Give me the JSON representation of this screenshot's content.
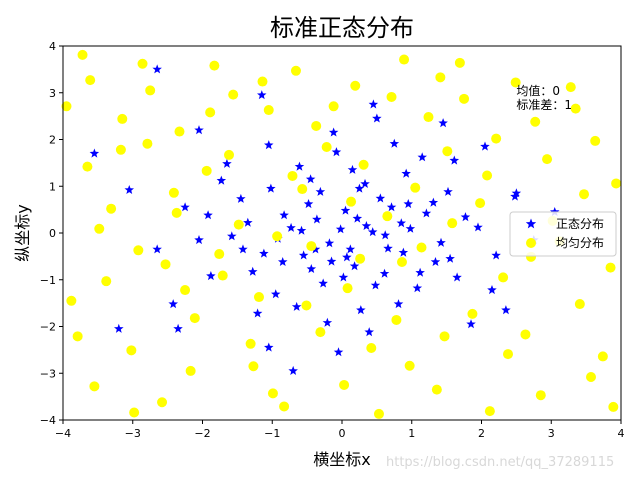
{
  "chart_data": {
    "type": "scatter",
    "title": "标准正态分布",
    "xlabel": "横坐标x",
    "ylabel": "纵坐标y",
    "xlim": [
      -4,
      4
    ],
    "ylim": [
      -4,
      4
    ],
    "x_ticks": [
      -4,
      -3,
      -2,
      -1,
      0,
      1,
      2,
      3,
      4
    ],
    "y_ticks": [
      -4,
      -3,
      -2,
      -1,
      0,
      1,
      2,
      3,
      4
    ],
    "grid": false,
    "legend_position": "center-right",
    "annotation_lines": [
      "均值：0",
      "标准差：1"
    ],
    "annotation_at": [
      2.5,
      2.7
    ],
    "series": [
      {
        "name": "正态分布",
        "marker": "star",
        "color": "#0000ff",
        "points": [
          [
            0.12,
            -0.35
          ],
          [
            -0.48,
            0.62
          ],
          [
            0.85,
            0.21
          ],
          [
            -1.12,
            -0.44
          ],
          [
            0.33,
            1.05
          ],
          [
            -0.27,
            -1.08
          ],
          [
            1.34,
            -0.62
          ],
          [
            -0.73,
            0.11
          ],
          [
            0.05,
            0.48
          ],
          [
            0.61,
            -0.87
          ],
          [
            -1.45,
            0.73
          ],
          [
            0.92,
            1.27
          ],
          [
            -0.18,
            -0.22
          ],
          [
            1.77,
            0.34
          ],
          [
            -0.95,
            -1.31
          ],
          [
            0.44,
            0.02
          ],
          [
            -0.61,
            1.42
          ],
          [
            1.08,
            -1.18
          ],
          [
            -2.05,
            -0.15
          ],
          [
            0.27,
            -1.65
          ],
          [
            -0.36,
            0.29
          ],
          [
            1.52,
            0.88
          ],
          [
            -1.28,
            -0.83
          ],
          [
            0.71,
            0.55
          ],
          [
            -0.08,
            1.73
          ],
          [
            2.21,
            -0.48
          ],
          [
            -1.73,
            1.12
          ],
          [
            0.18,
            -0.71
          ],
          [
            -0.55,
            -0.48
          ],
          [
            0.98,
            0.09
          ],
          [
            -2.42,
            -1.52
          ],
          [
            1.61,
            1.55
          ],
          [
            -0.83,
            0.38
          ],
          [
            0.39,
            -2.12
          ],
          [
            -1.05,
            1.88
          ],
          [
            2.48,
            0.78
          ],
          [
            -0.21,
            -1.92
          ],
          [
            1.21,
            0.42
          ],
          [
            -1.58,
            -0.07
          ],
          [
            0.66,
            -0.33
          ],
          [
            -3.55,
            1.7
          ],
          [
            -2.65,
            3.5
          ],
          [
            -3.2,
            -2.05
          ],
          [
            2.5,
            0.85
          ],
          [
            -0.7,
            -2.95
          ],
          [
            1.85,
            -1.95
          ],
          [
            -1.15,
            2.95
          ],
          [
            0.5,
            2.45
          ],
          [
            -2.05,
            2.2
          ],
          [
            2.05,
            1.85
          ],
          [
            -0.02,
            0.08
          ],
          [
            0.55,
            0.74
          ],
          [
            -0.92,
            -0.12
          ],
          [
            1.42,
            -0.21
          ],
          [
            -0.44,
            -0.77
          ],
          [
            0.81,
            -1.52
          ],
          [
            -1.35,
            0.22
          ],
          [
            0.25,
            0.95
          ],
          [
            -0.65,
            -1.58
          ],
          [
            1.95,
            0.12
          ],
          [
            -1.88,
            -0.92
          ],
          [
            0.07,
            -0.52
          ],
          [
            1.15,
            1.62
          ],
          [
            -0.31,
            0.88
          ],
          [
            0.48,
            -1.12
          ],
          [
            -1.02,
            0.95
          ],
          [
            1.65,
            -0.95
          ],
          [
            -0.12,
            2.15
          ],
          [
            0.88,
            -0.42
          ],
          [
            -2.25,
            0.55
          ],
          [
            -0.58,
            0.05
          ],
          [
            0.22,
            0.31
          ],
          [
            1.31,
            0.65
          ],
          [
            -1.65,
            1.48
          ],
          [
            0.75,
            1.91
          ],
          [
            -0.38,
            -0.35
          ],
          [
            2.15,
            -1.22
          ],
          [
            -1.21,
            -1.72
          ],
          [
            0.02,
            -0.95
          ],
          [
            0.95,
            0.62
          ],
          [
            -0.85,
            -0.62
          ],
          [
            0.35,
            0.15
          ],
          [
            -1.92,
            0.38
          ],
          [
            1.55,
            -0.55
          ],
          [
            -0.15,
            -0.61
          ],
          [
            0.62,
            -0.05
          ],
          [
            -0.45,
            1.15
          ],
          [
            1.12,
            -0.85
          ],
          [
            -1.42,
            -0.35
          ],
          [
            0.15,
            1.35
          ],
          [
            -2.65,
            -0.35
          ],
          [
            2.75,
            -0.15
          ],
          [
            -0.05,
            -2.55
          ],
          [
            0.45,
            2.75
          ],
          [
            -3.05,
            0.92
          ],
          [
            3.05,
            0.45
          ],
          [
            -1.05,
            -2.45
          ],
          [
            1.45,
            2.35
          ],
          [
            -2.35,
            -2.05
          ],
          [
            2.35,
            -1.65
          ]
        ]
      },
      {
        "name": "均匀分布",
        "marker": "circle",
        "color": "#ffff00",
        "points": [
          [
            -3.72,
            3.81
          ],
          [
            -3.15,
            2.44
          ],
          [
            -2.58,
            -3.62
          ],
          [
            -1.94,
            1.33
          ],
          [
            -1.27,
            -2.85
          ],
          [
            -0.66,
            3.47
          ],
          [
            0.08,
            -1.18
          ],
          [
            0.71,
            2.91
          ],
          [
            1.36,
            -3.35
          ],
          [
            1.98,
            0.64
          ],
          [
            2.63,
            -2.17
          ],
          [
            3.28,
            3.12
          ],
          [
            3.85,
            -0.74
          ],
          [
            -3.88,
            -1.45
          ],
          [
            -3.31,
            0.52
          ],
          [
            -2.75,
            3.05
          ],
          [
            -2.11,
            -1.82
          ],
          [
            -1.48,
            0.18
          ],
          [
            -0.83,
            -3.71
          ],
          [
            -0.22,
            1.84
          ],
          [
            0.42,
            -2.46
          ],
          [
            1.05,
            0.97
          ],
          [
            1.69,
            3.64
          ],
          [
            2.31,
            -0.95
          ],
          [
            2.94,
            1.58
          ],
          [
            3.57,
            -3.08
          ],
          [
            -3.55,
            -3.28
          ],
          [
            -2.92,
            -0.37
          ],
          [
            -2.33,
            2.17
          ],
          [
            -1.71,
            -0.91
          ],
          [
            -1.05,
            2.63
          ],
          [
            -0.44,
            -0.28
          ],
          [
            0.19,
            3.15
          ],
          [
            0.86,
            -0.62
          ],
          [
            1.51,
            1.75
          ],
          [
            2.12,
            -3.81
          ],
          [
            2.77,
            2.38
          ],
          [
            3.41,
            -1.52
          ],
          [
            3.93,
            1.06
          ],
          [
            -3.65,
            1.42
          ],
          [
            -3.02,
            -2.51
          ],
          [
            -2.41,
            0.86
          ],
          [
            -1.83,
            3.58
          ],
          [
            -1.19,
            -1.37
          ],
          [
            -0.57,
            0.94
          ],
          [
            0.03,
            -3.25
          ],
          [
            0.65,
            0.36
          ],
          [
            1.24,
            2.48
          ],
          [
            1.87,
            -1.73
          ],
          [
            2.49,
            3.22
          ],
          [
            3.12,
            -0.18
          ],
          [
            3.74,
            -2.64
          ],
          [
            -3.95,
            2.71
          ],
          [
            -3.38,
            -1.03
          ],
          [
            -2.79,
            1.91
          ],
          [
            -2.17,
            -2.95
          ],
          [
            -1.56,
            2.96
          ],
          [
            -0.93,
            -0.07
          ],
          [
            -0.31,
            -2.12
          ],
          [
            0.31,
            1.46
          ],
          [
            0.97,
            -2.84
          ],
          [
            1.58,
            0.21
          ],
          [
            2.21,
            2.02
          ],
          [
            2.85,
            -3.47
          ],
          [
            3.47,
            0.83
          ],
          [
            -3.48,
            0.09
          ],
          [
            -2.86,
            3.62
          ],
          [
            -2.25,
            -1.22
          ],
          [
            -1.62,
            1.67
          ],
          [
            -0.99,
            -3.43
          ],
          [
            -0.37,
            2.29
          ],
          [
            0.26,
            -0.55
          ],
          [
            0.89,
            3.71
          ],
          [
            1.47,
            -2.21
          ],
          [
            2.08,
            1.23
          ],
          [
            2.71,
            -0.51
          ],
          [
            3.35,
            2.66
          ],
          [
            3.89,
            -3.72
          ],
          [
            -3.79,
            -2.21
          ],
          [
            -3.17,
            1.78
          ],
          [
            -2.53,
            -0.67
          ],
          [
            -1.89,
            2.58
          ],
          [
            -1.31,
            -2.37
          ],
          [
            -0.71,
            1.22
          ],
          [
            -0.12,
            2.71
          ],
          [
            0.53,
            -3.87
          ],
          [
            1.14,
            -0.31
          ],
          [
            1.75,
            2.87
          ],
          [
            2.38,
            -2.59
          ],
          [
            3.02,
            0.26
          ],
          [
            3.63,
            1.97
          ],
          [
            -3.61,
            3.27
          ],
          [
            -2.98,
            -3.84
          ],
          [
            -2.37,
            0.43
          ],
          [
            -1.76,
            -0.45
          ],
          [
            -1.14,
            3.24
          ],
          [
            -0.51,
            -1.55
          ],
          [
            0.13,
            0.67
          ],
          [
            0.78,
            -1.86
          ],
          [
            1.41,
            3.33
          ]
        ]
      }
    ]
  },
  "watermark": "https://blog.csdn.net/qq_37289115"
}
